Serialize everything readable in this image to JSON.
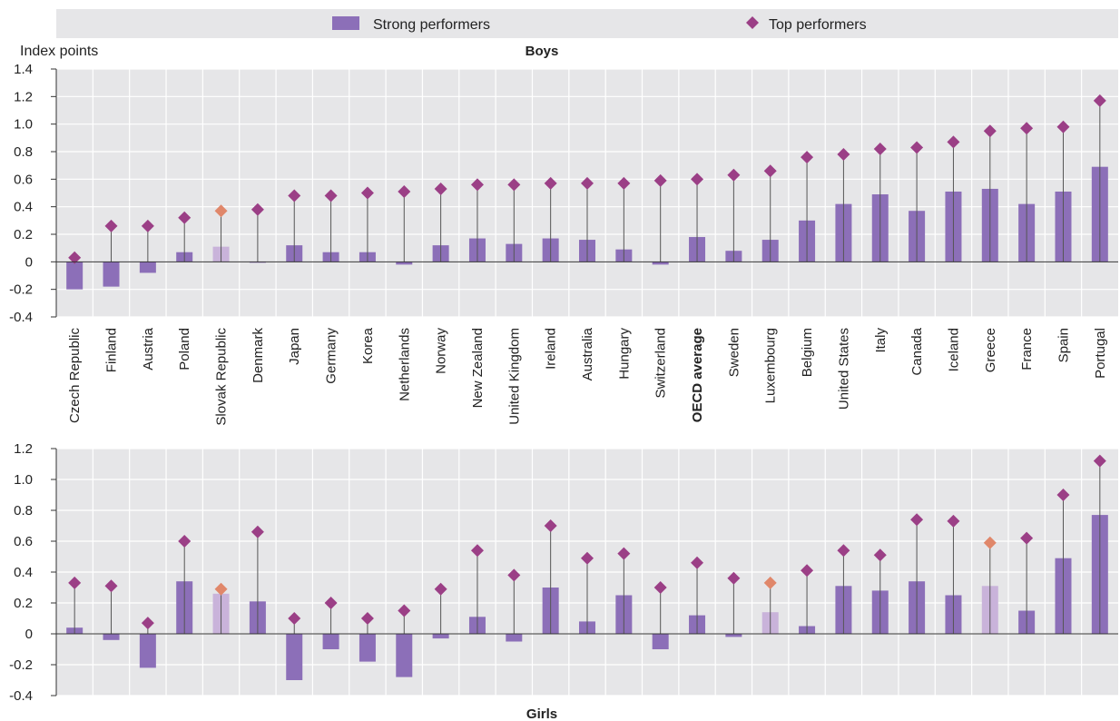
{
  "legend": {
    "strong_label": "Strong performers",
    "top_label": "Top performers"
  },
  "colors": {
    "bar": "#8c6fb8",
    "bar_highlight": "#c9b3da",
    "marker": "#9b3f86",
    "marker_highlight": "#e0876a",
    "stem": "#555555"
  },
  "chart_data": [
    {
      "type": "bar",
      "title": "Boys",
      "ylabel": "Index points",
      "ylim": [
        -0.4,
        1.4
      ],
      "yticks": [
        "1.4",
        "1.2",
        "1.0",
        "0.8",
        "0.6",
        "0.4",
        "0.2",
        "0",
        "-0.2",
        "-0.4"
      ],
      "categories": [
        "Czech Republic",
        "Finland",
        "Austria",
        "Poland",
        "Slovak Republic",
        "Denmark",
        "Japan",
        "Germany",
        "Korea",
        "Netherlands",
        "Norway",
        "New Zealand",
        "United Kingdom",
        "Ireland",
        "Australia",
        "Hungary",
        "Switzerland",
        "OECD average",
        "Sweden",
        "Luxembourg",
        "Belgium",
        "United States",
        "Italy",
        "Canada",
        "Iceland",
        "Greece",
        "France",
        "Spain",
        "Portugal"
      ],
      "bold_categories": [
        "OECD average"
      ],
      "highlight_categories": [
        "Slovak Republic"
      ],
      "series": [
        {
          "name": "Strong performers",
          "values": [
            -0.2,
            -0.18,
            -0.08,
            0.07,
            0.11,
            0.0,
            0.12,
            0.07,
            0.07,
            -0.02,
            0.12,
            0.17,
            0.13,
            0.17,
            0.16,
            0.09,
            -0.02,
            0.18,
            0.08,
            0.16,
            0.3,
            0.42,
            0.49,
            0.37,
            0.51,
            0.53,
            0.42,
            0.51,
            0.69
          ]
        },
        {
          "name": "Top performers",
          "values": [
            0.03,
            0.26,
            0.26,
            0.32,
            0.37,
            0.38,
            0.48,
            0.48,
            0.5,
            0.51,
            0.53,
            0.56,
            0.56,
            0.57,
            0.57,
            0.57,
            0.59,
            0.6,
            0.63,
            0.66,
            0.76,
            0.78,
            0.82,
            0.83,
            0.87,
            0.95,
            0.97,
            0.98,
            1.17
          ]
        }
      ]
    },
    {
      "type": "bar",
      "title": "Girls",
      "ylim": [
        -0.4,
        1.2
      ],
      "yticks": [
        "1.2",
        "1.0",
        "0.8",
        "0.6",
        "0.4",
        "0.2",
        "0",
        "-0.2",
        "-0.4"
      ],
      "categories": [
        "Czech Republic",
        "Finland",
        "Austria",
        "Poland",
        "Slovak Republic",
        "Denmark",
        "Japan",
        "Germany",
        "Korea",
        "Netherlands",
        "Norway",
        "New Zealand",
        "United Kingdom",
        "Ireland",
        "Australia",
        "Hungary",
        "Switzerland",
        "OECD average",
        "Sweden",
        "Luxembourg",
        "Belgium",
        "United States",
        "Italy",
        "Canada",
        "Iceland",
        "Greece",
        "France",
        "Spain",
        "Portugal"
      ],
      "highlight_categories": [
        "Slovak Republic",
        "Luxembourg",
        "Greece"
      ],
      "series": [
        {
          "name": "Strong performers",
          "values": [
            0.04,
            -0.04,
            -0.22,
            0.34,
            0.26,
            0.21,
            -0.3,
            -0.1,
            -0.18,
            -0.28,
            -0.03,
            0.11,
            -0.05,
            0.3,
            0.08,
            0.25,
            -0.1,
            0.12,
            -0.02,
            0.14,
            0.05,
            0.31,
            0.28,
            0.34,
            0.25,
            0.31,
            0.15,
            0.49,
            0.77
          ]
        },
        {
          "name": "Top performers",
          "values": [
            0.33,
            0.31,
            0.07,
            0.6,
            0.29,
            0.66,
            0.1,
            0.2,
            0.1,
            0.15,
            0.29,
            0.54,
            0.38,
            0.7,
            0.49,
            0.52,
            0.3,
            0.46,
            0.36,
            0.33,
            0.41,
            0.54,
            0.51,
            0.74,
            0.73,
            0.59,
            0.62,
            0.9,
            1.12
          ]
        }
      ]
    }
  ]
}
